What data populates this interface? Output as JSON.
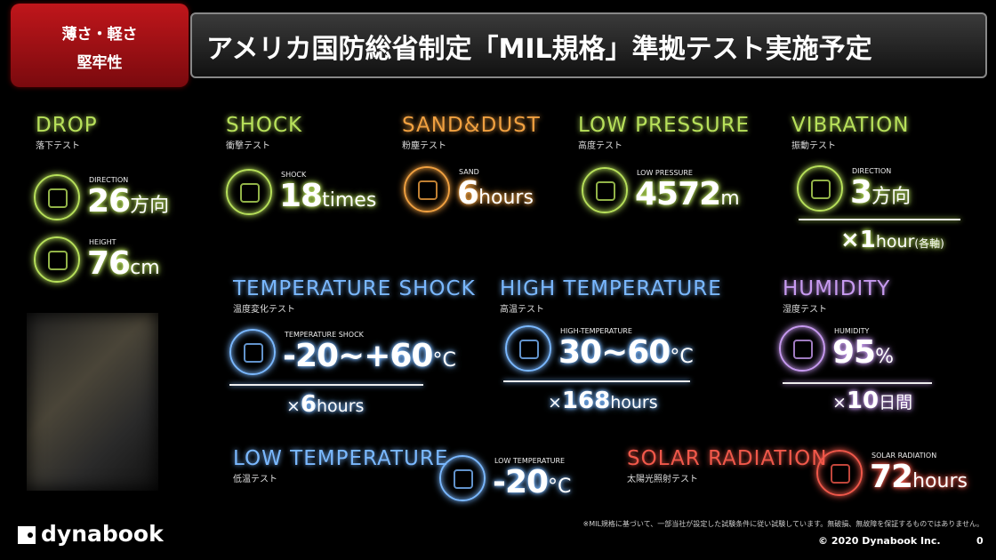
{
  "header": {
    "badge": [
      "薄さ・軽さ",
      "堅牢性"
    ],
    "title": "アメリカ国防総省制定「MIL規格」準拠テスト実施予定"
  },
  "tests": [
    {
      "name": "DROP",
      "subtitle": "落下テスト",
      "metrics": [
        {
          "label": "DIRECTION",
          "value": "26",
          "unit": "方向"
        },
        {
          "label": "HEIGHT",
          "value": "76",
          "unit": "cm"
        }
      ]
    },
    {
      "name": "SHOCK",
      "subtitle": "衝撃テスト",
      "metrics": [
        {
          "label": "SHOCK",
          "value": "18",
          "unit": "times"
        }
      ]
    },
    {
      "name": "SAND&DUST",
      "subtitle": "粉塵テスト",
      "metrics": [
        {
          "label": "SAND",
          "value": "6",
          "unit": "hours"
        }
      ]
    },
    {
      "name": "LOW PRESSURE",
      "subtitle": "高度テスト",
      "metrics": [
        {
          "label": "LOW PRESSURE",
          "value": "4572",
          "unit": "m"
        }
      ]
    },
    {
      "name": "VIBRATION",
      "subtitle": "振動テスト",
      "metrics": [
        {
          "label": "DIRECTION",
          "value": "3",
          "unit": "方向"
        }
      ],
      "extra": [
        "×1",
        "hour",
        "(各軸)"
      ]
    },
    {
      "name": "TEMPERATURE SHOCK",
      "subtitle": "温度変化テスト",
      "metrics": [
        {
          "label": "TEMPERATURE SHOCK",
          "value": "-20~+60",
          "unit": "°C"
        }
      ],
      "extra": [
        "×",
        "6",
        "hours"
      ]
    },
    {
      "name": "HIGH TEMPERATURE",
      "subtitle": "高温テスト",
      "metrics": [
        {
          "label": "HIGH-TEMPERATURE",
          "value": "30~60",
          "unit": "°C"
        }
      ],
      "extra": [
        "×",
        "168",
        "hours"
      ]
    },
    {
      "name": "HUMIDITY",
      "subtitle": "湿度テスト",
      "metrics": [
        {
          "label": "HUMIDITY",
          "value": "95",
          "unit": "%"
        }
      ],
      "extra": [
        "×",
        "10",
        "日間"
      ]
    },
    {
      "name": "LOW TEMPERATURE",
      "subtitle": "低温テスト",
      "metrics": [
        {
          "label": "LOW TEMPERATURE",
          "value": "-20",
          "unit": "°C"
        }
      ]
    },
    {
      "name": "SOLAR RADIATION",
      "subtitle": "太陽光照射テスト",
      "metrics": [
        {
          "label": "SOLAR RADIATION",
          "value": "72",
          "unit": "hours"
        }
      ]
    }
  ],
  "footer": {
    "logo": "dynabook",
    "note": "※MIL規格に基づいて、一部当社が設定した試験条件に従い試験しています。無破損、無故障を保証するものではありません。",
    "copyright": "© 2020 Dynabook Inc.",
    "page": "0"
  }
}
